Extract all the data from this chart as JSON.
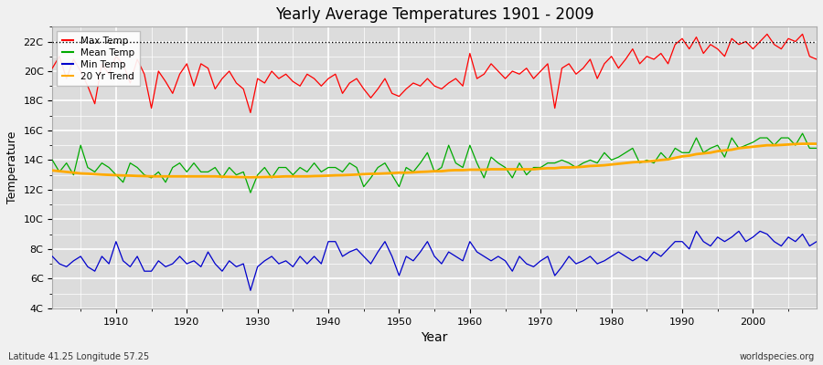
{
  "title": "Yearly Average Temperatures 1901 - 2009",
  "xlabel": "Year",
  "ylabel": "Temperature",
  "lat_lon_label": "Latitude 41.25 Longitude 57.25",
  "credit_label": "worldspecies.org",
  "ylim": [
    4,
    23
  ],
  "yticks": [
    4,
    6,
    8,
    10,
    12,
    14,
    16,
    18,
    20,
    22
  ],
  "ytick_labels": [
    "4C",
    "6C",
    "8C",
    "10C",
    "12C",
    "14C",
    "16C",
    "18C",
    "20C",
    "22C"
  ],
  "years": [
    1901,
    1902,
    1903,
    1904,
    1905,
    1906,
    1907,
    1908,
    1909,
    1910,
    1911,
    1912,
    1913,
    1914,
    1915,
    1916,
    1917,
    1918,
    1919,
    1920,
    1921,
    1922,
    1923,
    1924,
    1925,
    1926,
    1927,
    1928,
    1929,
    1930,
    1931,
    1932,
    1933,
    1934,
    1935,
    1936,
    1937,
    1938,
    1939,
    1940,
    1941,
    1942,
    1943,
    1944,
    1945,
    1946,
    1947,
    1948,
    1949,
    1950,
    1951,
    1952,
    1953,
    1954,
    1955,
    1956,
    1957,
    1958,
    1959,
    1960,
    1961,
    1962,
    1963,
    1964,
    1965,
    1966,
    1967,
    1968,
    1969,
    1970,
    1971,
    1972,
    1973,
    1974,
    1975,
    1976,
    1977,
    1978,
    1979,
    1980,
    1981,
    1982,
    1983,
    1984,
    1985,
    1986,
    1987,
    1988,
    1989,
    1990,
    1991,
    1992,
    1993,
    1994,
    1995,
    1996,
    1997,
    1998,
    1999,
    2000,
    2001,
    2002,
    2003,
    2004,
    2005,
    2006,
    2007,
    2008,
    2009
  ],
  "max_temp": [
    20.2,
    21.0,
    19.5,
    20.8,
    20.0,
    19.0,
    17.8,
    20.5,
    19.8,
    21.0,
    20.5,
    19.2,
    20.8,
    19.8,
    17.5,
    20.0,
    19.3,
    18.5,
    19.8,
    20.5,
    19.0,
    20.5,
    20.2,
    18.8,
    19.5,
    20.0,
    19.2,
    18.8,
    17.2,
    19.5,
    19.2,
    20.0,
    19.5,
    19.8,
    19.3,
    19.0,
    19.8,
    19.5,
    19.0,
    19.5,
    19.8,
    18.5,
    19.2,
    19.5,
    18.8,
    18.2,
    18.8,
    19.5,
    18.5,
    18.3,
    18.8,
    19.2,
    19.0,
    19.5,
    19.0,
    18.8,
    19.2,
    19.5,
    19.0,
    21.2,
    19.5,
    19.8,
    20.5,
    20.0,
    19.5,
    20.0,
    19.8,
    20.2,
    19.5,
    20.0,
    20.5,
    17.5,
    20.2,
    20.5,
    19.8,
    20.2,
    20.8,
    19.5,
    20.5,
    21.0,
    20.2,
    20.8,
    21.5,
    20.5,
    21.0,
    20.8,
    21.2,
    20.5,
    21.8,
    22.2,
    21.5,
    22.3,
    21.2,
    21.8,
    21.5,
    21.0,
    22.2,
    21.8,
    22.0,
    21.5,
    22.0,
    22.5,
    21.8,
    21.5,
    22.2,
    22.0,
    22.5,
    21.0,
    20.8
  ],
  "mean_temp": [
    14.0,
    13.2,
    13.8,
    13.0,
    15.0,
    13.5,
    13.2,
    13.8,
    13.5,
    13.0,
    12.5,
    13.8,
    13.5,
    13.0,
    12.8,
    13.2,
    12.5,
    13.5,
    13.8,
    13.2,
    13.8,
    13.2,
    13.2,
    13.5,
    12.8,
    13.5,
    13.0,
    13.2,
    11.8,
    13.0,
    13.5,
    12.8,
    13.5,
    13.5,
    13.0,
    13.5,
    13.2,
    13.8,
    13.2,
    13.5,
    13.5,
    13.2,
    13.8,
    13.5,
    12.2,
    12.8,
    13.5,
    13.8,
    13.0,
    12.2,
    13.5,
    13.2,
    13.8,
    14.5,
    13.2,
    13.5,
    15.0,
    13.8,
    13.5,
    15.0,
    13.8,
    12.8,
    14.2,
    13.8,
    13.5,
    12.8,
    13.8,
    13.0,
    13.5,
    13.5,
    13.8,
    13.8,
    14.0,
    13.8,
    13.5,
    13.8,
    14.0,
    13.8,
    14.5,
    14.0,
    14.2,
    14.5,
    14.8,
    13.8,
    14.0,
    13.8,
    14.5,
    14.0,
    14.8,
    14.5,
    14.5,
    15.5,
    14.5,
    14.8,
    15.0,
    14.2,
    15.5,
    14.8,
    15.0,
    15.2,
    15.5,
    15.5,
    15.0,
    15.5,
    15.5,
    15.0,
    15.8,
    14.8,
    14.8
  ],
  "min_temp": [
    7.5,
    7.0,
    6.8,
    7.2,
    7.5,
    6.8,
    6.5,
    7.5,
    7.0,
    8.5,
    7.2,
    6.8,
    7.5,
    6.5,
    6.5,
    7.2,
    6.8,
    7.0,
    7.5,
    7.0,
    7.2,
    6.8,
    7.8,
    7.0,
    6.5,
    7.2,
    6.8,
    7.0,
    5.2,
    6.8,
    7.2,
    7.5,
    7.0,
    7.2,
    6.8,
    7.5,
    7.0,
    7.5,
    7.0,
    8.5,
    8.5,
    7.5,
    7.8,
    8.0,
    7.5,
    7.0,
    7.8,
    8.5,
    7.5,
    6.2,
    7.5,
    7.2,
    7.8,
    8.5,
    7.5,
    7.0,
    7.8,
    7.5,
    7.2,
    8.5,
    7.8,
    7.5,
    7.2,
    7.5,
    7.2,
    6.5,
    7.5,
    7.0,
    6.8,
    7.2,
    7.5,
    6.2,
    6.8,
    7.5,
    7.0,
    7.2,
    7.5,
    7.0,
    7.2,
    7.5,
    7.8,
    7.5,
    7.2,
    7.5,
    7.2,
    7.8,
    7.5,
    8.0,
    8.5,
    8.5,
    8.0,
    9.2,
    8.5,
    8.2,
    8.8,
    8.5,
    8.8,
    9.2,
    8.5,
    8.8,
    9.2,
    9.0,
    8.5,
    8.2,
    8.8,
    8.5,
    9.0,
    8.2,
    8.5
  ],
  "trend_20yr": [
    13.3,
    13.25,
    13.2,
    13.15,
    13.1,
    13.08,
    13.05,
    13.02,
    13.0,
    12.98,
    12.96,
    12.95,
    12.93,
    12.92,
    12.9,
    12.9,
    12.9,
    12.9,
    12.9,
    12.9,
    12.9,
    12.9,
    12.9,
    12.9,
    12.88,
    12.87,
    12.86,
    12.85,
    12.84,
    12.85,
    12.86,
    12.87,
    12.88,
    12.9,
    12.9,
    12.9,
    12.9,
    12.92,
    12.93,
    12.95,
    12.97,
    12.98,
    13.0,
    13.02,
    13.05,
    13.07,
    13.08,
    13.1,
    13.12,
    13.15,
    13.15,
    13.17,
    13.2,
    13.22,
    13.25,
    13.25,
    13.3,
    13.32,
    13.32,
    13.35,
    13.35,
    13.35,
    13.38,
    13.38,
    13.38,
    13.38,
    13.38,
    13.38,
    13.38,
    13.42,
    13.45,
    13.45,
    13.5,
    13.5,
    13.52,
    13.55,
    13.6,
    13.62,
    13.65,
    13.7,
    13.75,
    13.8,
    13.85,
    13.88,
    13.9,
    13.95,
    14.0,
    14.05,
    14.15,
    14.25,
    14.3,
    14.4,
    14.45,
    14.5,
    14.6,
    14.65,
    14.7,
    14.8,
    14.85,
    14.9,
    14.95,
    15.0,
    15.0,
    15.02,
    15.05,
    15.08,
    15.1,
    15.1,
    15.1
  ],
  "max_color": "#ff0000",
  "mean_color": "#00aa00",
  "min_color": "#0000cc",
  "trend_color": "#ffaa00",
  "dotted_line_y": 22,
  "bg_color": "#f0f0f0",
  "plot_bg_color": "#dcdcdc",
  "grid_color": "#ffffff",
  "xmin": 1901,
  "xmax": 2009,
  "xticks": [
    1910,
    1920,
    1930,
    1940,
    1950,
    1960,
    1970,
    1980,
    1990,
    2000
  ]
}
